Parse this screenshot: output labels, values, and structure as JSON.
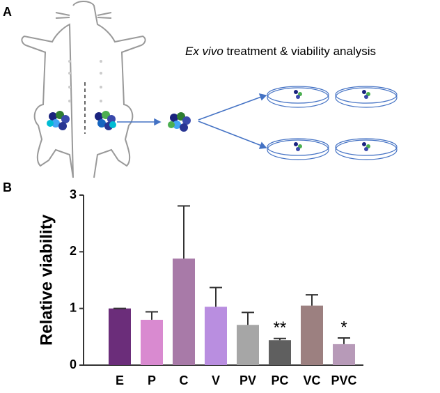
{
  "panel_a": {
    "label": "A",
    "caption_italic": "Ex vivo",
    "caption_rest": "treatment & viability analysis"
  },
  "chart_data": {
    "type": "bar",
    "panel_label": "B",
    "ylabel": "Relative viability",
    "categories": [
      "E",
      "P",
      "C",
      "V",
      "PV",
      "PC",
      "VC",
      "PVC"
    ],
    "values": [
      1.0,
      0.8,
      1.88,
      1.03,
      0.71,
      0.44,
      1.05,
      0.37
    ],
    "errors": [
      0,
      0.14,
      0.93,
      0.34,
      0.22,
      0.03,
      0.19,
      0.11
    ],
    "colors": [
      "#6b2d7a",
      "#d98ad0",
      "#a87aa8",
      "#b98ee0",
      "#a6a6a6",
      "#5f5f5f",
      "#9c8080",
      "#b79ab8"
    ],
    "ylim": [
      0,
      3
    ],
    "yticks": [
      0,
      1,
      2,
      3
    ],
    "annotations": [
      {
        "label": "**",
        "x": "PC"
      },
      {
        "label": "*",
        "x": "PVC"
      }
    ]
  }
}
